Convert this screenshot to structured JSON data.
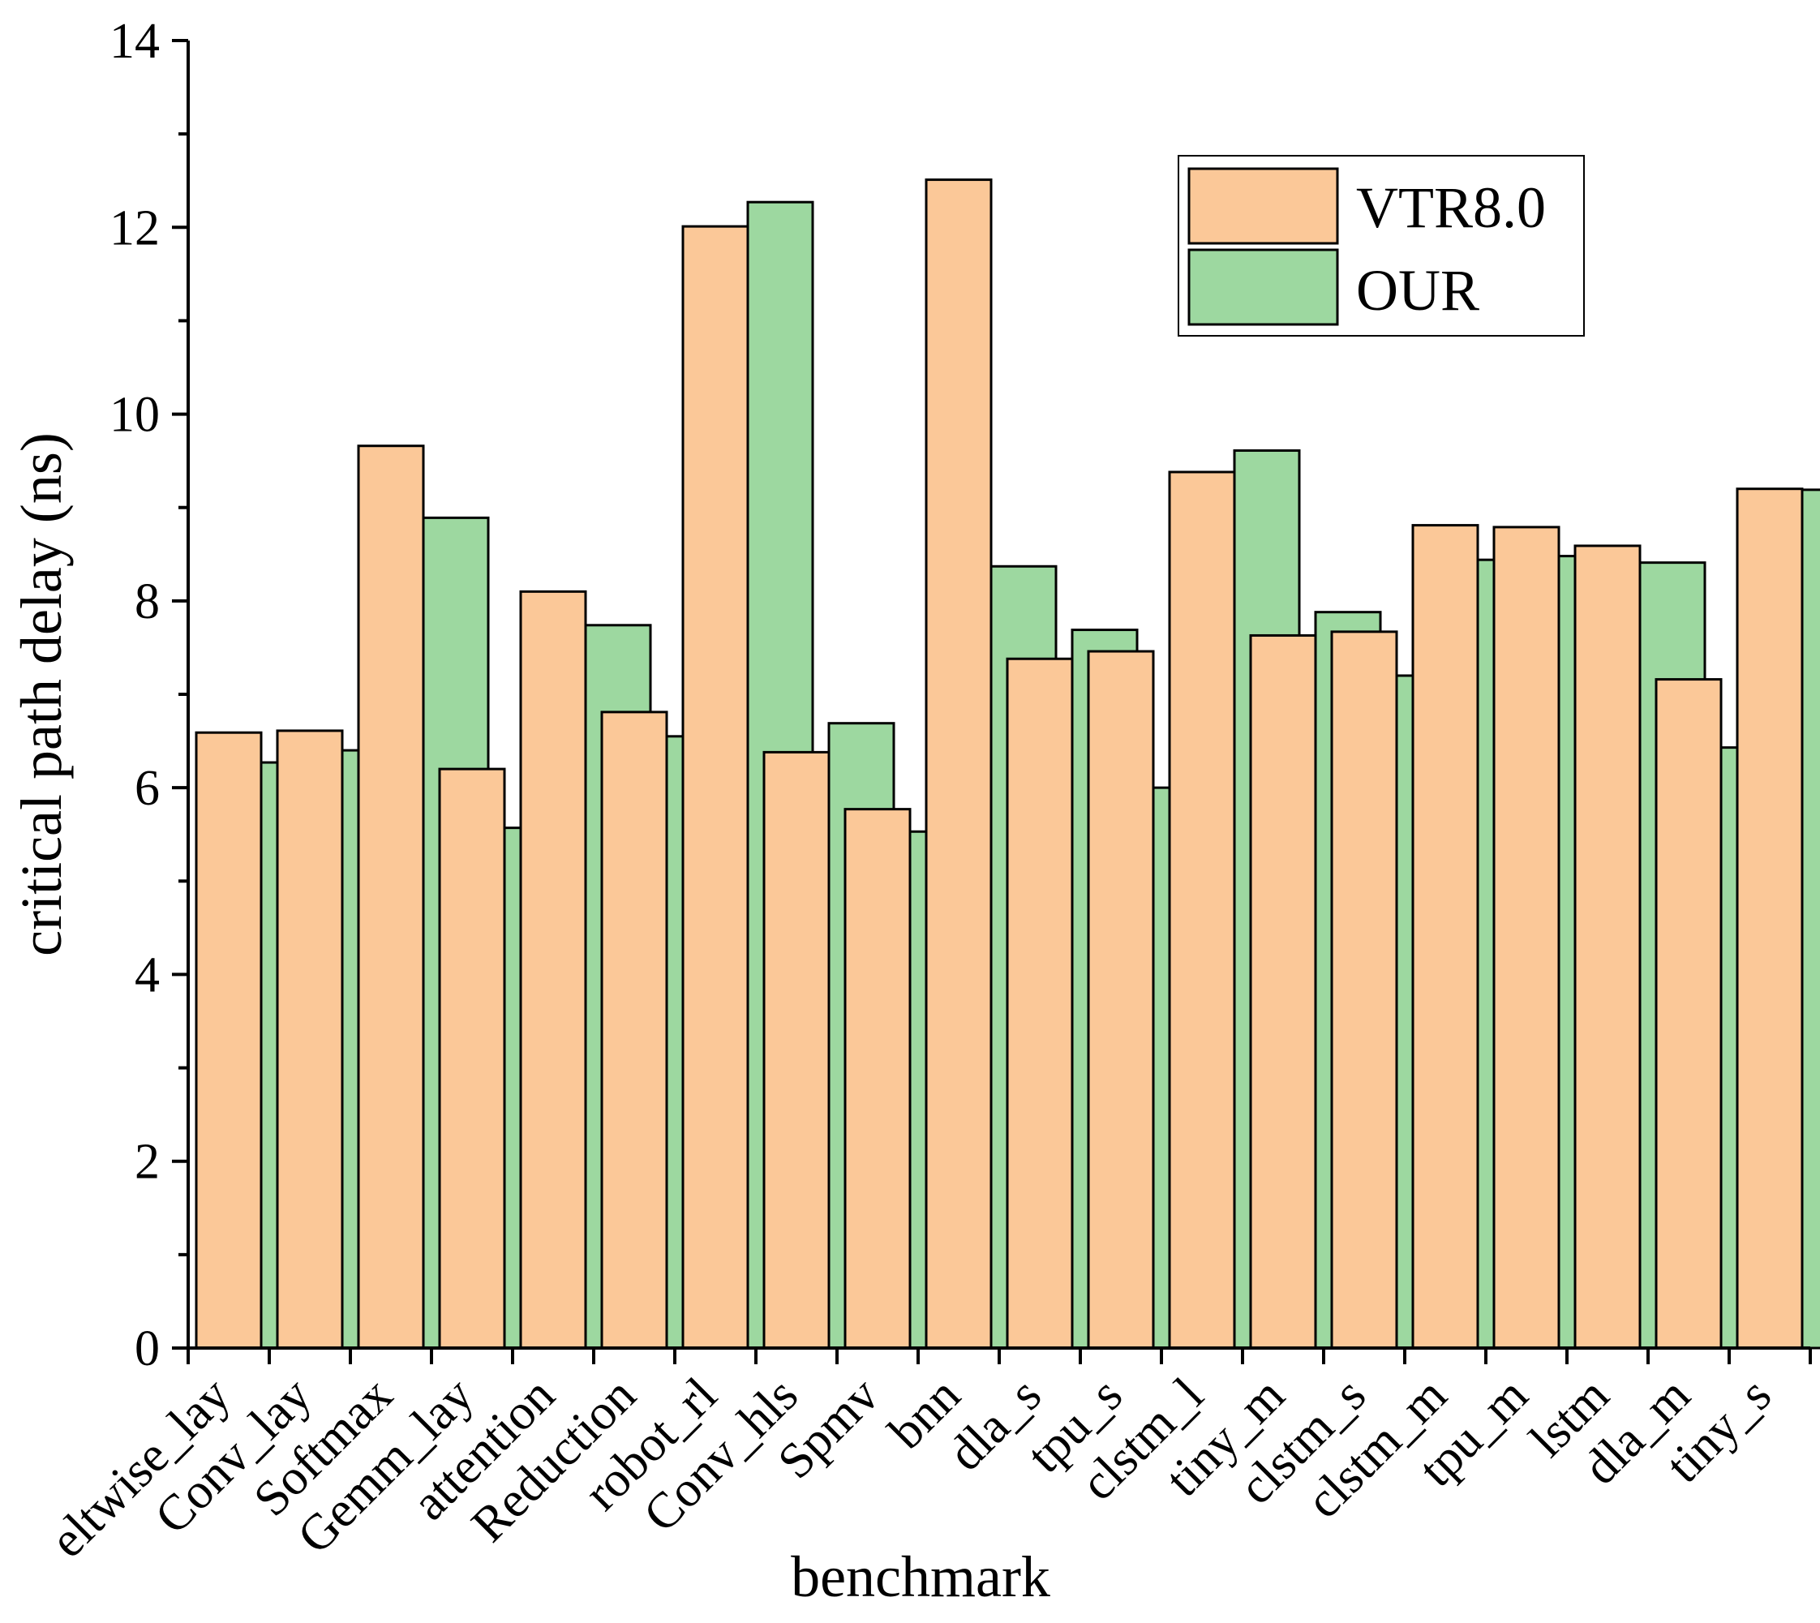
{
  "chart_data": {
    "type": "bar",
    "title": "",
    "xlabel": "benchmark",
    "ylabel": "critical path delay (ns)",
    "ylim": [
      0,
      14
    ],
    "yticks": [
      0,
      2,
      4,
      6,
      8,
      10,
      12,
      14
    ],
    "grid": false,
    "legend_position": "top-right",
    "categories": [
      "eltwise_lay",
      "Conv_lay",
      "Softmax",
      "Gemm_lay",
      "attention",
      "Reduction",
      "robot_rl",
      "Conv_hls",
      "Spmv",
      "bnn",
      "dla_s",
      "tpu_s",
      "clstm_l",
      "tiny_m",
      "clstm_s",
      "clstm_m",
      "tpu_m",
      "lstm",
      "dla_m",
      "tiny_s"
    ],
    "series": [
      {
        "name": "VTR8.0",
        "color": "#fbc898",
        "values": [
          6.59,
          6.61,
          9.66,
          6.2,
          8.1,
          6.81,
          12.01,
          6.38,
          5.77,
          12.51,
          7.38,
          7.46,
          9.38,
          7.63,
          7.67,
          8.81,
          8.79,
          8.59,
          7.16,
          9.2
        ]
      },
      {
        "name": "OUR",
        "color": "#9dd8a0",
        "values": [
          6.27,
          6.4,
          8.89,
          5.57,
          7.74,
          6.55,
          12.27,
          6.69,
          5.53,
          8.37,
          7.69,
          6.0,
          9.61,
          7.88,
          7.2,
          8.44,
          8.48,
          8.41,
          6.43,
          9.19
        ]
      }
    ]
  }
}
